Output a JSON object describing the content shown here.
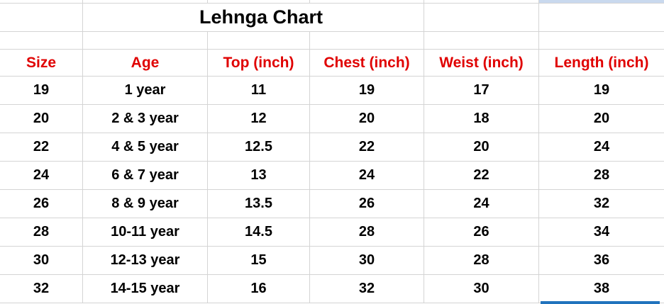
{
  "sheet": {
    "title": "Lehnga Chart",
    "columns": [
      "Size",
      "Age",
      "Top (inch)",
      "Chest (inch)",
      "Weist (inch)",
      "Length (inch)"
    ],
    "rows": [
      [
        "19",
        "1 year",
        "11",
        "19",
        "17",
        "19"
      ],
      [
        "20",
        "2 & 3 year",
        "12",
        "20",
        "18",
        "20"
      ],
      [
        "22",
        "4 & 5 year",
        "12.5",
        "22",
        "20",
        "24"
      ],
      [
        "24",
        "6 & 7 year",
        "13",
        "24",
        "22",
        "28"
      ],
      [
        "26",
        "8 & 9 year",
        "13.5",
        "26",
        "24",
        "32"
      ],
      [
        "28",
        "10-11 year",
        "14.5",
        "28",
        "26",
        "34"
      ],
      [
        "30",
        "12-13 year",
        "15",
        "30",
        "28",
        "36"
      ],
      [
        "32",
        "14-15 year",
        "16",
        "32",
        "30",
        "38"
      ]
    ],
    "colors": {
      "header_text": "#e00000",
      "body_text": "#000000",
      "gridline": "#d4d4d4",
      "selection_border": "#2173bd",
      "selection_fill": "#c9d9ee"
    }
  }
}
